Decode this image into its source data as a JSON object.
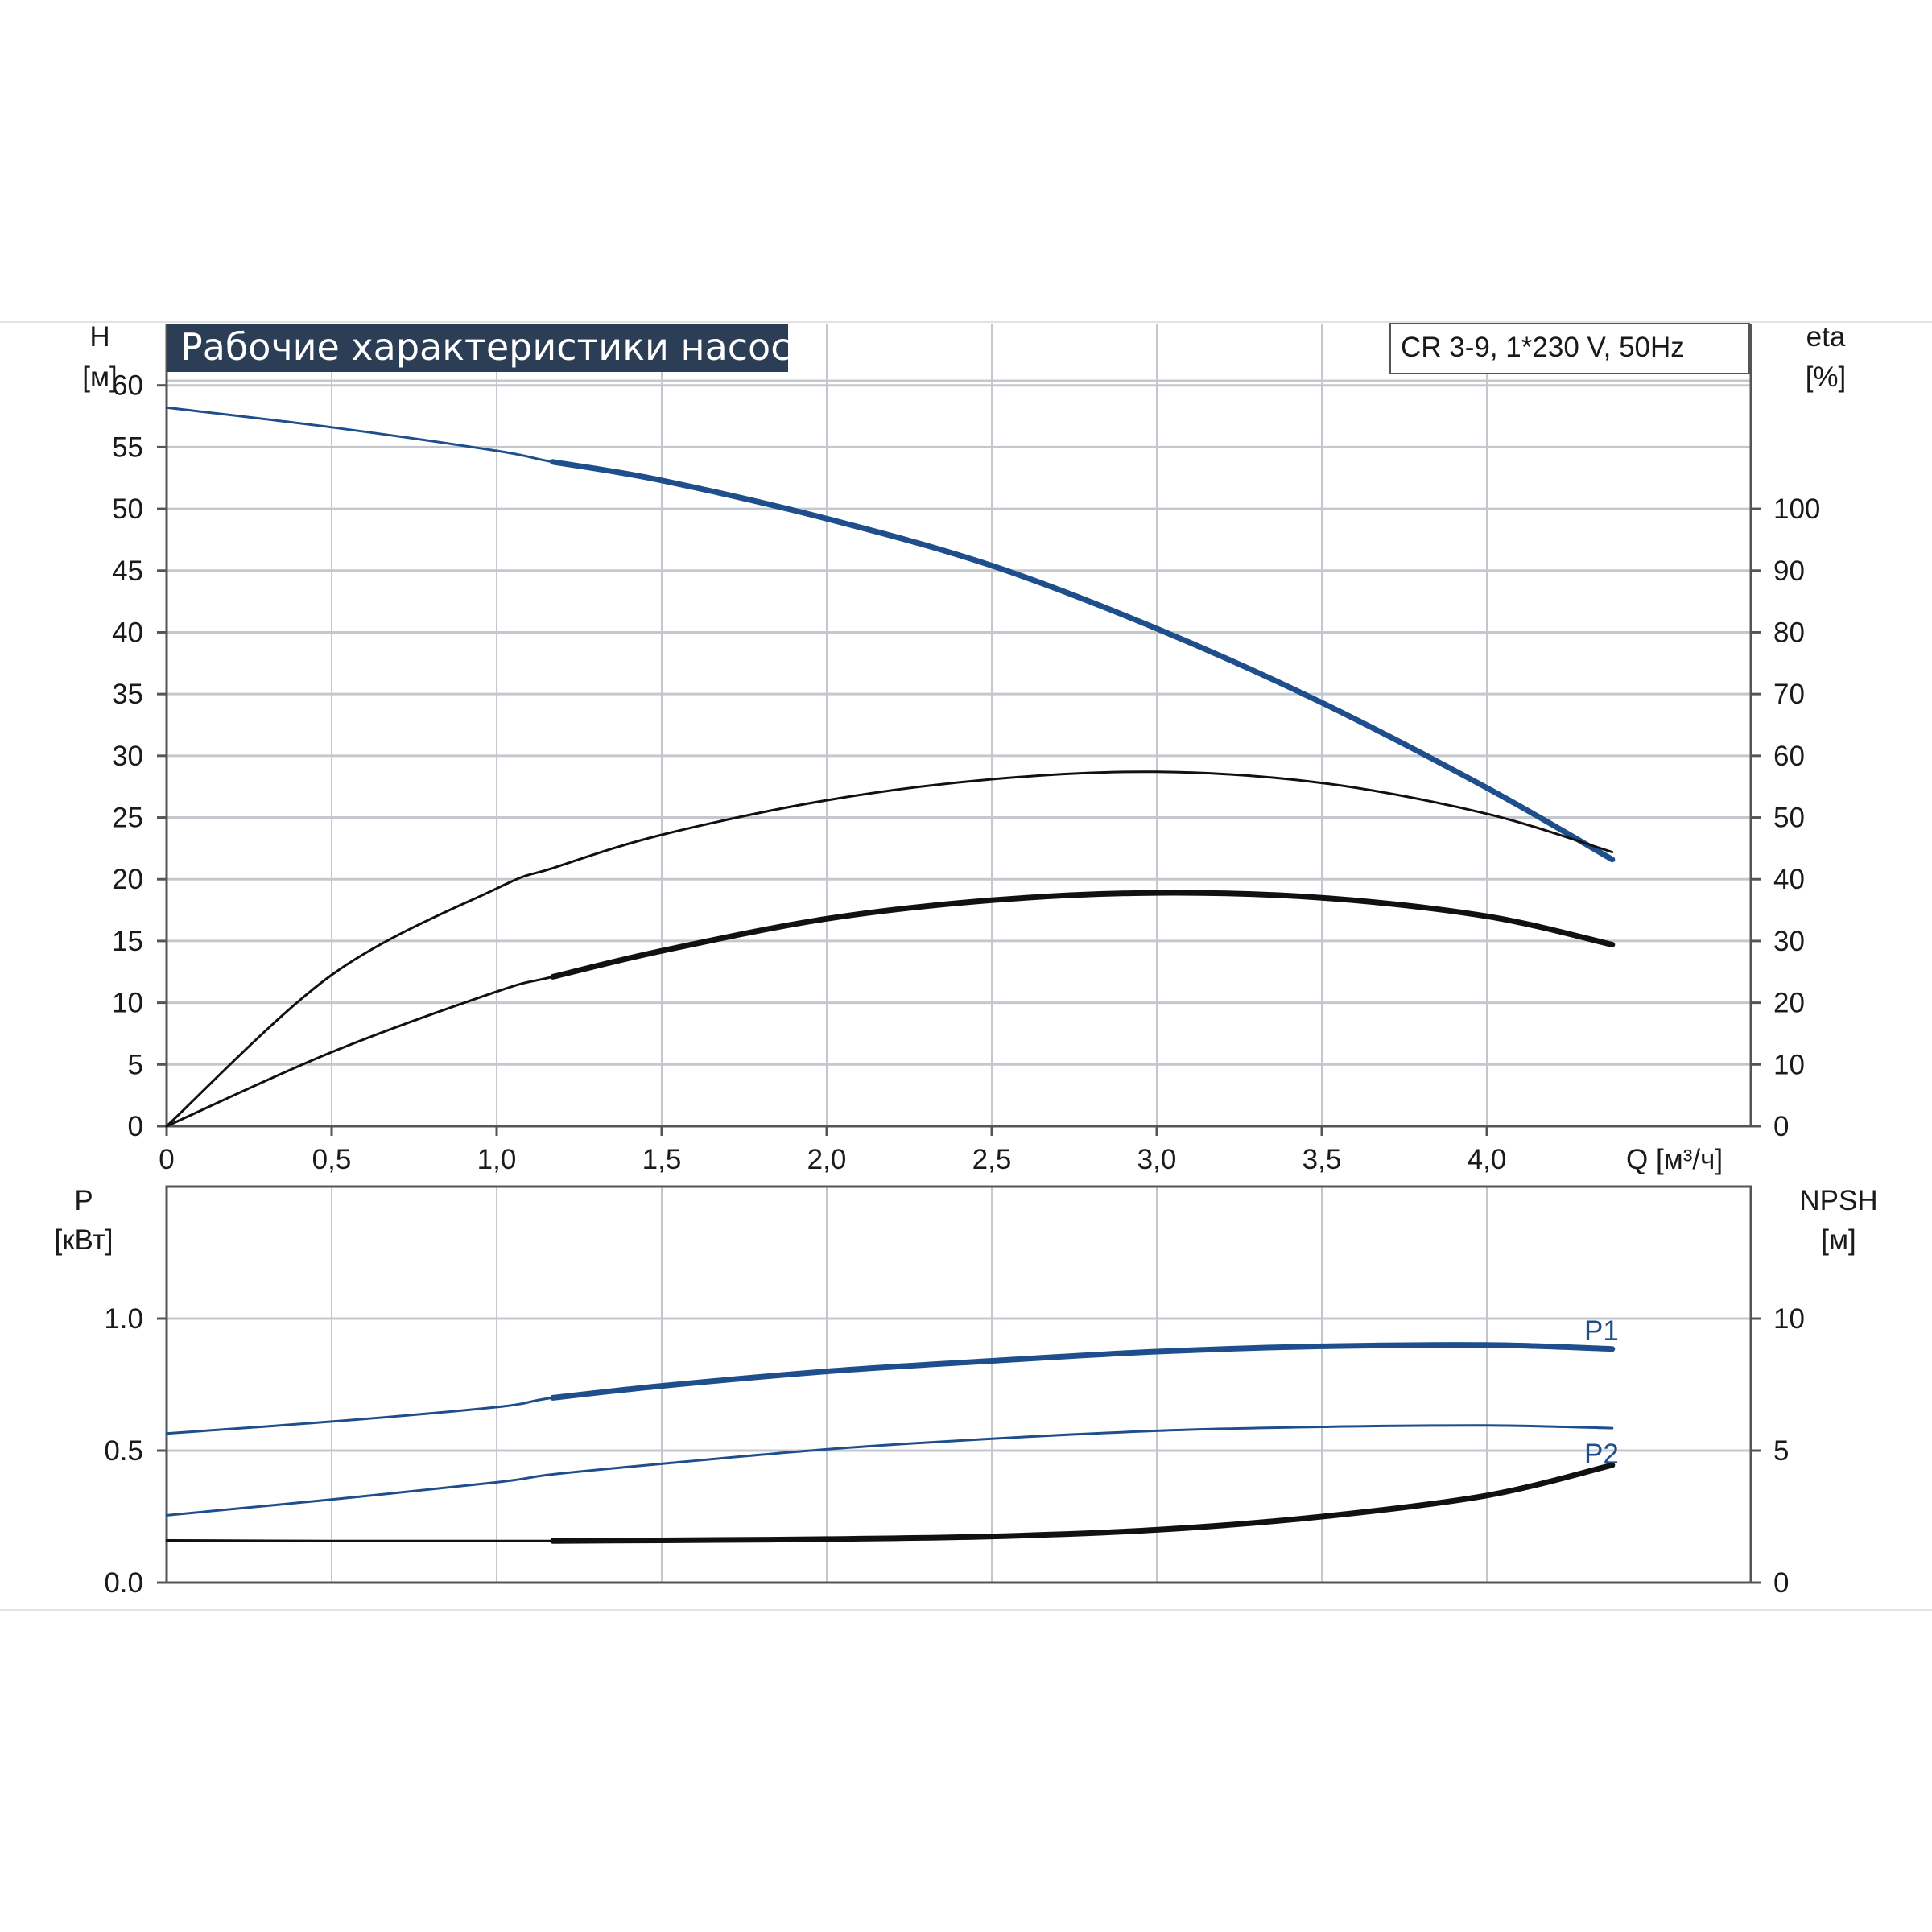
{
  "title": "Рабочие характеристики насоса",
  "model": "CR 3-9, 1*230 V, 50Hz",
  "colors": {
    "title_bg": "#2c3e55",
    "grid": "#c4c8ce",
    "axis": "#555555",
    "blue": "#1e4f8c",
    "black": "#111111"
  },
  "chart_data": [
    {
      "type": "line",
      "name": "top",
      "x_label": "Q [м³/ч]",
      "x_ticks": [
        "0",
        "0,5",
        "1,0",
        "1,5",
        "2,0",
        "2,5",
        "3,0",
        "3,5",
        "4,0"
      ],
      "xlim": [
        0,
        4.8
      ],
      "left_axis": {
        "label_line1": "H",
        "label_line2": "[м]",
        "ylim": [
          0,
          65
        ],
        "ticks": [
          "0",
          "5",
          "10",
          "15",
          "20",
          "25",
          "30",
          "35",
          "40",
          "45",
          "50",
          "55",
          "60"
        ]
      },
      "right_axis": {
        "label_line1": "eta",
        "label_line2": "[%]",
        "ylim": [
          0,
          130
        ],
        "ticks": [
          "0",
          "10",
          "20",
          "30",
          "40",
          "50",
          "60",
          "70",
          "80",
          "90",
          "100"
        ]
      },
      "series": [
        {
          "axis": "left",
          "color": "blue",
          "x": [
            0,
            0.5,
            1.0,
            1.17,
            1.5,
            2.0,
            2.5,
            3.0,
            3.5,
            4.0,
            4.38
          ],
          "y": [
            58.2,
            56.6,
            54.7,
            53.8,
            52.3,
            49.2,
            45.4,
            40.3,
            34.3,
            27.4,
            21.6
          ],
          "bold_from": 1.17
        },
        {
          "axis": "right",
          "color": "black",
          "x": [
            0,
            0.5,
            1.0,
            1.17,
            1.5,
            2.0,
            2.5,
            3.0,
            3.5,
            4.0,
            4.38
          ],
          "y": [
            0,
            24.5,
            38.5,
            41.8,
            47.2,
            52.8,
            56.2,
            57.4,
            55.6,
            50.6,
            44.4
          ],
          "bold_from": 99
        },
        {
          "axis": "right",
          "color": "black",
          "x": [
            0,
            0.5,
            1.0,
            1.17,
            1.5,
            2.0,
            2.5,
            3.0,
            3.5,
            4.0,
            4.38
          ],
          "y": [
            0,
            12.0,
            21.8,
            24.2,
            28.4,
            33.6,
            36.6,
            37.8,
            37.0,
            34.0,
            29.4
          ],
          "bold_from": 1.17
        }
      ]
    },
    {
      "type": "line",
      "name": "bottom",
      "xlim": [
        0,
        4.8
      ],
      "left_axis": {
        "label_line1": "P",
        "label_line2": "[кВт]",
        "ylim": [
          0,
          1.5
        ],
        "ticks": [
          "0.0",
          "0.5",
          "1.0"
        ]
      },
      "right_axis": {
        "label_line1": "NPSH",
        "label_line2": "[м]",
        "ylim": [
          0,
          15
        ],
        "ticks": [
          "0",
          "5",
          "10"
        ]
      },
      "series": [
        {
          "name": "P1",
          "axis": "left",
          "color": "blue",
          "x": [
            0,
            0.5,
            1.0,
            1.17,
            1.5,
            2.0,
            2.5,
            3.0,
            3.5,
            4.0,
            4.38
          ],
          "y": [
            0.565,
            0.61,
            0.665,
            0.7,
            0.745,
            0.8,
            0.84,
            0.875,
            0.895,
            0.9,
            0.885
          ],
          "bold_from": 1.17
        },
        {
          "name": "P2",
          "axis": "left",
          "color": "blue",
          "x": [
            0,
            0.5,
            1.0,
            1.17,
            1.5,
            2.0,
            2.5,
            3.0,
            3.5,
            4.0,
            4.38
          ],
          "y": [
            0.255,
            0.315,
            0.38,
            0.41,
            0.45,
            0.505,
            0.545,
            0.575,
            0.59,
            0.595,
            0.585
          ],
          "bold_from": 99
        },
        {
          "axis": "right",
          "color": "black",
          "x": [
            0,
            0.5,
            1.0,
            1.17,
            1.5,
            2.0,
            2.5,
            3.0,
            3.5,
            4.0,
            4.38
          ],
          "y": [
            1.6,
            1.58,
            1.58,
            1.58,
            1.6,
            1.65,
            1.75,
            2.0,
            2.5,
            3.3,
            4.45
          ],
          "bold_from": 1.17
        }
      ]
    }
  ]
}
